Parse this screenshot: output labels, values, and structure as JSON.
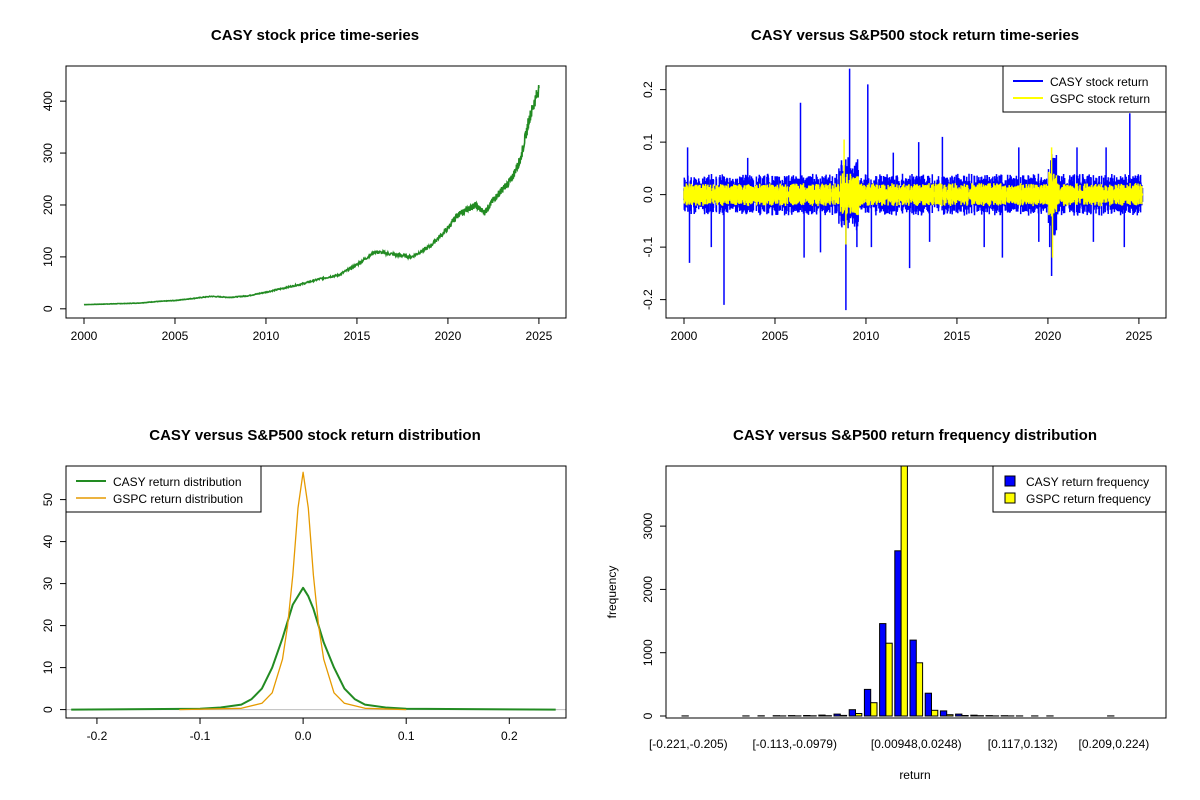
{
  "chart_data": [
    {
      "type": "line",
      "title": "CASY stock price time-series",
      "xlabel": "",
      "ylabel": "",
      "xlim": [
        2000,
        2025.5
      ],
      "ylim": [
        -10,
        460
      ],
      "x_ticks": [
        2000,
        2005,
        2010,
        2015,
        2020,
        2025
      ],
      "y_ticks": [
        0,
        100,
        200,
        300,
        400
      ],
      "series": [
        {
          "color": "#228b22",
          "x": [
            2000,
            2001,
            2002,
            2003,
            2004,
            2005,
            2006,
            2007,
            2008,
            2009,
            2010,
            2011,
            2012,
            2013,
            2014,
            2015,
            2016,
            2017,
            2018,
            2019,
            2020,
            2020.5,
            2021,
            2021.5,
            2022,
            2022.5,
            2023,
            2023.5,
            2024,
            2024.5,
            2025
          ],
          "y": [
            8,
            9,
            10,
            11,
            14,
            16,
            20,
            24,
            22,
            25,
            32,
            40,
            48,
            58,
            65,
            85,
            110,
            105,
            100,
            120,
            155,
            180,
            190,
            200,
            185,
            210,
            230,
            250,
            290,
            370,
            425
          ]
        }
      ]
    },
    {
      "type": "line",
      "title": "CASY versus S&P500 stock return time-series",
      "xlabel": "",
      "ylabel": "",
      "xlim": [
        2000,
        2025.5
      ],
      "ylim": [
        -0.235,
        0.245
      ],
      "x_ticks": [
        2000,
        2005,
        2010,
        2015,
        2020,
        2025
      ],
      "y_ticks": [
        -0.2,
        -0.1,
        0.0,
        0.1,
        0.2
      ],
      "y_tick_labels": [
        "-0.2",
        "-0.1",
        "0.0",
        "0.1",
        "0.2"
      ],
      "legend": "top-right",
      "series": [
        {
          "name": "CASY stock return",
          "color": "#0000ff",
          "spikes": [
            [
              2000.2,
              0.09
            ],
            [
              2000.3,
              -0.13
            ],
            [
              2001.5,
              -0.1
            ],
            [
              2002.2,
              -0.21
            ],
            [
              2003.5,
              0.07
            ],
            [
              2006.4,
              0.175
            ],
            [
              2006.6,
              -0.12
            ],
            [
              2007.5,
              -0.11
            ],
            [
              2008.9,
              -0.22
            ],
            [
              2009.1,
              0.24
            ],
            [
              2009.5,
              -0.1
            ],
            [
              2010.1,
              0.21
            ],
            [
              2010.3,
              -0.1
            ],
            [
              2011.5,
              0.08
            ],
            [
              2012.4,
              -0.14
            ],
            [
              2012.9,
              0.1
            ],
            [
              2013.5,
              -0.09
            ],
            [
              2014.2,
              0.11
            ],
            [
              2016.5,
              -0.1
            ],
            [
              2017.5,
              -0.12
            ],
            [
              2018.4,
              0.09
            ],
            [
              2019.5,
              -0.09
            ],
            [
              2020.1,
              -0.1
            ],
            [
              2020.2,
              -0.155
            ],
            [
              2020.3,
              0.07
            ],
            [
              2021.6,
              0.09
            ],
            [
              2022.5,
              -0.09
            ],
            [
              2023.2,
              0.09
            ],
            [
              2024.2,
              -0.1
            ],
            [
              2024.5,
              0.155
            ]
          ],
          "band": 0.04
        },
        {
          "name": "GSPC stock return",
          "color": "#ffff00",
          "spikes": [
            [
              2008.8,
              0.105
            ],
            [
              2008.9,
              -0.095
            ],
            [
              2020.2,
              0.09
            ],
            [
              2020.25,
              -0.12
            ]
          ],
          "band": 0.022
        }
      ]
    },
    {
      "type": "line",
      "title": "CASY versus S&P500 stock return distribution",
      "xlabel": "",
      "ylabel": "",
      "xlim": [
        -0.23,
        0.255
      ],
      "ylim": [
        -2,
        58
      ],
      "x_ticks": [
        -0.2,
        -0.1,
        0.0,
        0.1,
        0.2
      ],
      "x_tick_labels": [
        "-0.2",
        "-0.1",
        "0.0",
        "0.1",
        "0.2"
      ],
      "y_ticks": [
        0,
        10,
        20,
        30,
        40,
        50
      ],
      "legend": "top-left",
      "series": [
        {
          "name": "CASY return distribution",
          "color": "#228b22",
          "x": [
            -0.225,
            -0.1,
            -0.08,
            -0.06,
            -0.05,
            -0.04,
            -0.03,
            -0.02,
            -0.01,
            0.0,
            0.005,
            0.01,
            0.02,
            0.03,
            0.04,
            0.05,
            0.06,
            0.08,
            0.1,
            0.245
          ],
          "y": [
            0,
            0.2,
            0.5,
            1.2,
            2.5,
            5,
            10,
            17,
            25,
            29,
            27,
            24,
            16,
            10,
            5,
            2.5,
            1.2,
            0.5,
            0.2,
            0
          ]
        },
        {
          "name": "GSPC return distribution",
          "color": "#e69a00",
          "x": [
            -0.12,
            -0.06,
            -0.04,
            -0.03,
            -0.02,
            -0.015,
            -0.01,
            -0.005,
            0.0,
            0.005,
            0.01,
            0.015,
            0.02,
            0.03,
            0.04,
            0.06,
            0.1
          ],
          "y": [
            0,
            0.3,
            1.5,
            4,
            12,
            20,
            32,
            48,
            56.5,
            48,
            32,
            20,
            12,
            4,
            1.5,
            0.3,
            0
          ]
        }
      ]
    },
    {
      "type": "bar",
      "title": "CASY versus S&P500 return frequency distribution",
      "xlabel": "return",
      "ylabel": "frequency",
      "ylim": [
        0,
        3950
      ],
      "y_ticks": [
        0,
        1000,
        2000,
        3000
      ],
      "legend": "top-right",
      "categories": [
        "[-0.221,-0.205)",
        "[-0.205,-0.19)",
        "[-0.19,-0.174)",
        "[-0.174,-0.159)",
        "[-0.159,-0.144)",
        "[-0.144,-0.128)",
        "[-0.128,-0.113)",
        "[-0.113,-0.0979)",
        "[-0.0979,-0.0826)",
        "[-0.0826,-0.0673)",
        "[-0.0673,-0.052)",
        "[-0.052,-0.0367)",
        "[-0.0367,-0.0214)",
        "[-0.0214,-0.00583)",
        "[-0.00583,0.00948)",
        "[0.00948,0.0248)",
        "[0.0248,0.0401)",
        "[0.0401,0.0554)",
        "[0.0554,0.0707)",
        "[0.0707,0.086)",
        "[0.086,0.101)",
        "[0.101,0.117)",
        "[0.117,0.132)",
        "[0.132,0.147)",
        "[0.147,0.163)",
        "[0.163,0.178)",
        "[0.178,0.193)",
        "[0.193,0.209)",
        "[0.209,0.224)"
      ],
      "x_tick_labels": [
        "[-0.221,-0.205)",
        "[-0.113,-0.0979)",
        "[0.00948,0.0248)",
        "[0.117,0.132)",
        "[0.209,0.224)"
      ],
      "x_tick_indices": [
        0,
        7,
        15,
        22,
        28
      ],
      "series": [
        {
          "name": "CASY return frequency",
          "color": "#0000ff",
          "values": [
            1,
            0,
            0,
            0,
            2,
            3,
            4,
            6,
            8,
            15,
            30,
            100,
            420,
            1460,
            2610,
            1200,
            360,
            80,
            30,
            12,
            6,
            4,
            2,
            1,
            1,
            0,
            0,
            0,
            1
          ]
        },
        {
          "name": "GSPC return frequency",
          "color": "#ffff00",
          "values": [
            0,
            0,
            0,
            0,
            0,
            0,
            1,
            2,
            3,
            5,
            10,
            40,
            210,
            1150,
            3950,
            840,
            90,
            20,
            8,
            4,
            2,
            1,
            0,
            0,
            0,
            0,
            0,
            0,
            0
          ]
        }
      ]
    }
  ]
}
